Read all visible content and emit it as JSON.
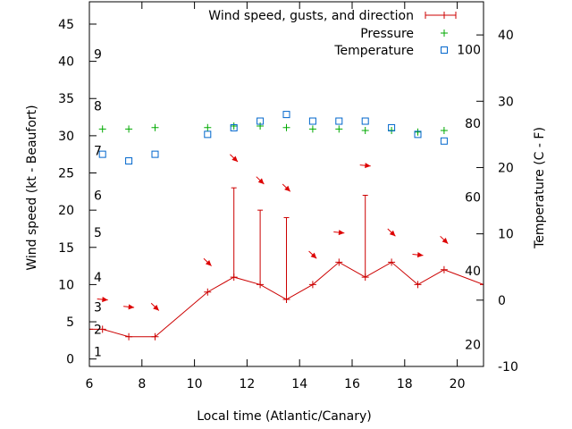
{
  "chart_data": {
    "type": "line",
    "xlabel": "Local time (Atlantic/Canary)",
    "ylabel_left": "Wind speed (kt - Beaufort)",
    "ylabel_right": "Temperature (C - F)",
    "xlim": [
      6,
      21
    ],
    "ylim_left": [
      -1,
      48
    ],
    "ylim_right": [
      -10,
      45
    ],
    "x_ticks": [
      "6",
      "8",
      "10",
      "12",
      "14",
      "16",
      "18",
      "20"
    ],
    "y_ticks_left": [
      "0",
      "5",
      "10",
      "15",
      "20",
      "25",
      "30",
      "35",
      "40",
      "45"
    ],
    "y_ticks_right": [
      "-10",
      "0",
      "10",
      "20",
      "30",
      "40"
    ],
    "beaufort_labels": [
      "1",
      "2",
      "3",
      "4",
      "5",
      "6",
      "7",
      "8",
      "9"
    ],
    "fahrenheit_labels": [
      "20",
      "40",
      "60",
      "80",
      "100"
    ],
    "grid": false,
    "legend_position": "top-right",
    "legend": [
      {
        "label": "Wind speed, gusts, and direction",
        "color": "#cc0000",
        "marker": "errorbar"
      },
      {
        "label": "Pressure",
        "color": "#00aa00",
        "marker": "plus"
      },
      {
        "label": "Temperature",
        "color": "#0066cc",
        "marker": "square"
      }
    ],
    "wind_series": {
      "name": "Wind speed, gusts, and direction",
      "color": "#cc0000",
      "x": [
        6,
        6.5,
        7.5,
        8.5,
        10.5,
        11.5,
        12.5,
        13.5,
        14.5,
        15.5,
        16.5,
        17.5,
        18.5,
        19.5,
        21
      ],
      "speed": [
        4,
        4,
        3,
        3,
        9,
        11,
        10,
        8,
        10,
        13,
        11,
        13,
        10,
        12,
        10
      ],
      "gust": [
        null,
        null,
        null,
        null,
        null,
        23,
        20,
        19,
        null,
        null,
        22,
        null,
        null,
        null,
        null
      ]
    },
    "wind_direction": [
      {
        "x": 6.5,
        "y": 8,
        "dir": "E"
      },
      {
        "x": 7.5,
        "y": 7,
        "dir": "E"
      },
      {
        "x": 8.5,
        "y": 7,
        "dir": "SE"
      },
      {
        "x": 10.5,
        "y": 13,
        "dir": "SE"
      },
      {
        "x": 11.5,
        "y": 27,
        "dir": "SE"
      },
      {
        "x": 12.5,
        "y": 24,
        "dir": "SE"
      },
      {
        "x": 13.5,
        "y": 23,
        "dir": "SE"
      },
      {
        "x": 14.5,
        "y": 14,
        "dir": "SE"
      },
      {
        "x": 15.5,
        "y": 17,
        "dir": "E"
      },
      {
        "x": 16.5,
        "y": 26,
        "dir": "E"
      },
      {
        "x": 17.5,
        "y": 17,
        "dir": "SE"
      },
      {
        "x": 18.5,
        "y": 14,
        "dir": "E"
      },
      {
        "x": 19.5,
        "y": 16,
        "dir": "SE"
      }
    ],
    "pressure_series": {
      "name": "Pressure",
      "color": "#00aa00",
      "x": [
        6.5,
        7.5,
        8.5,
        10.5,
        11.5,
        12.5,
        13.5,
        14.5,
        15.5,
        16.5,
        17.5,
        18.5,
        19.5
      ],
      "y": [
        30.9,
        30.9,
        31.1,
        31.1,
        31.3,
        31.3,
        31.1,
        30.9,
        30.9,
        30.7,
        30.7,
        30.5,
        30.7
      ]
    },
    "temperature_series": {
      "name": "Temperature",
      "color": "#0066cc",
      "x": [
        6.5,
        7.5,
        8.5,
        10.5,
        11.5,
        12.5,
        13.5,
        14.5,
        15.5,
        16.5,
        17.5,
        18.5,
        19.5
      ],
      "y": [
        22,
        21,
        22,
        25,
        26,
        27,
        28,
        27,
        27,
        27,
        26,
        25,
        24
      ]
    }
  }
}
